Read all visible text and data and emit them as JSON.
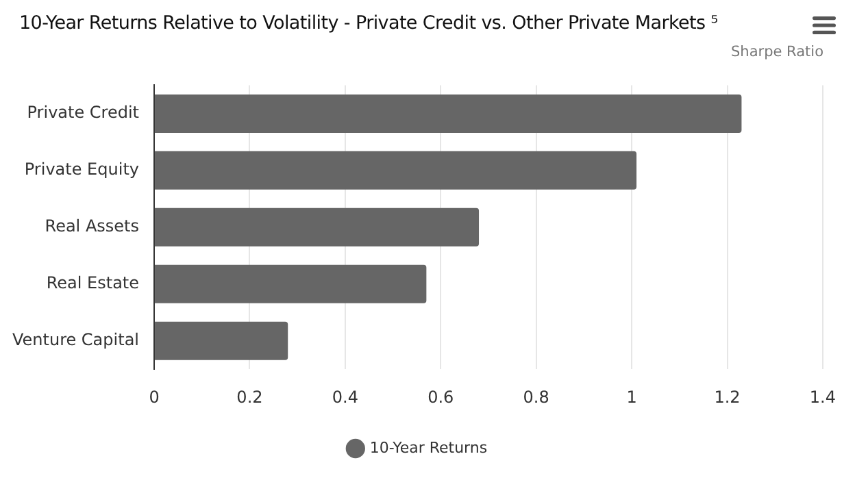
{
  "chart_data": {
    "type": "bar",
    "orientation": "horizontal",
    "title": "10-Year Returns Relative to Volatility - Private Credit vs. Other Private Markets ⁵",
    "xlabel": "Sharpe Ratio",
    "categories": [
      "Private Credit",
      "Private Equity",
      "Real Assets",
      "Real Estate",
      "Venture Capital"
    ],
    "series": [
      {
        "name": "10-Year Returns",
        "color": "#666666",
        "values": [
          1.23,
          1.01,
          0.68,
          0.57,
          0.28
        ]
      }
    ],
    "xlim": [
      0,
      1.4
    ],
    "xticks": [
      0,
      0.2,
      0.4,
      0.6,
      0.8,
      1,
      1.2,
      1.4
    ],
    "grid": "x",
    "legend": "bottom"
  }
}
